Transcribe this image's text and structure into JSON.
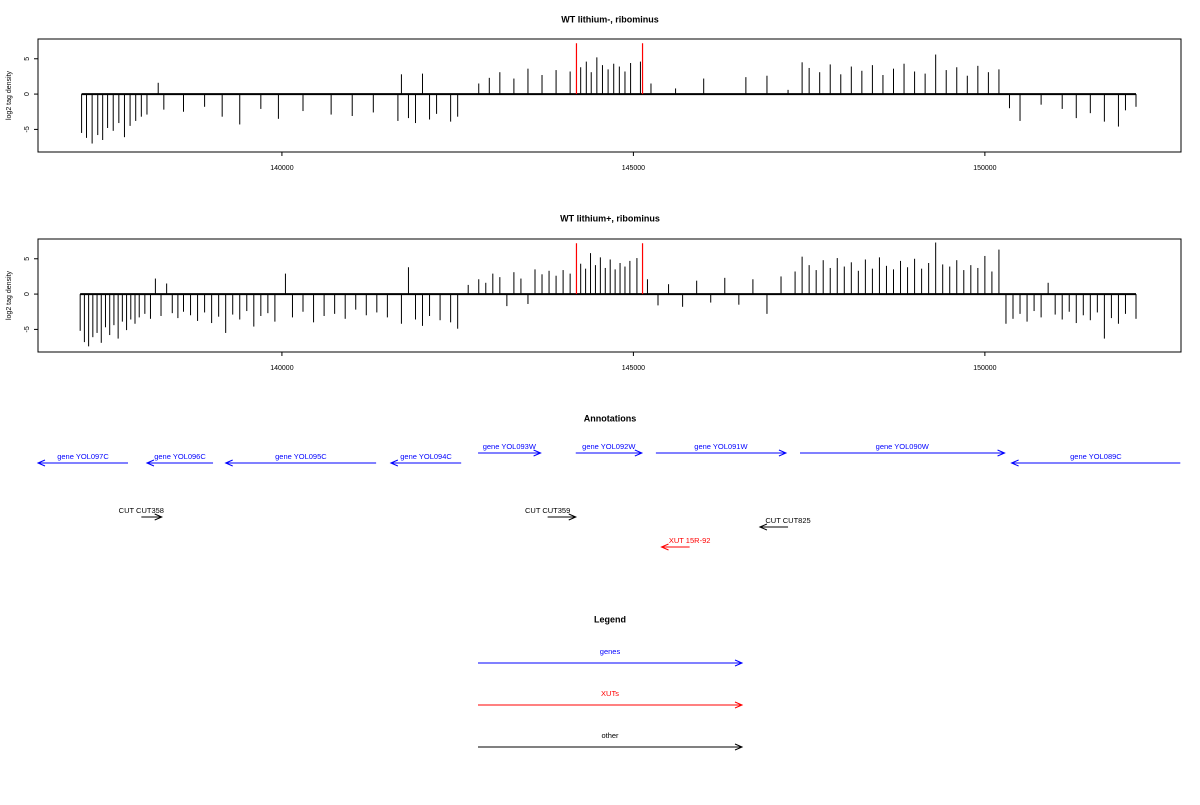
{
  "chart_data": [
    {
      "type": "bar",
      "title": "WT lithium-, ribominus",
      "y_label": "log2 tag density",
      "color": "#000000",
      "xlim": [
        136530,
        152790
      ],
      "ylim": [
        -8.2,
        7.8
      ],
      "xticks": [
        140000,
        145000,
        150000
      ],
      "yticks": [
        -5,
        0,
        5
      ],
      "x": [
        137150,
        137220,
        137300,
        137380,
        137450,
        137520,
        137600,
        137680,
        137760,
        137840,
        137920,
        138000,
        138080,
        138240,
        138320,
        138600,
        138900,
        139150,
        139400,
        139700,
        139950,
        140300,
        140700,
        141000,
        141300,
        141650,
        141700,
        141800,
        141900,
        142000,
        142100,
        142200,
        142400,
        142500,
        142800,
        142950,
        143100,
        143300,
        143500,
        143700,
        143900,
        144100,
        144250,
        144330,
        144400,
        144480,
        144560,
        144640,
        144720,
        144800,
        144880,
        144960,
        145100,
        145250,
        145600,
        146000,
        146600,
        146900,
        147200,
        147400,
        147500,
        147650,
        147800,
        147950,
        148100,
        148250,
        148400,
        148550,
        148700,
        148850,
        149000,
        149150,
        149300,
        149450,
        149600,
        149750,
        149900,
        150050,
        150200,
        150350,
        150500,
        150800,
        151100,
        151300,
        151500,
        151700,
        151900,
        152000,
        152150
      ],
      "values": [
        -5.5,
        -6.2,
        -7,
        -5.8,
        -6.5,
        -4.8,
        -5.2,
        -4.1,
        -6.1,
        -4.5,
        -3.8,
        -3.2,
        -2.9,
        1.6,
        -2.2,
        -2.5,
        -1.8,
        -3.2,
        -4.3,
        -2.1,
        -3.5,
        -2.4,
        -2.9,
        -3.1,
        -2.6,
        -3.8,
        2.8,
        -3.4,
        -4.1,
        2.9,
        -3.6,
        -2.8,
        -3.9,
        -3.2,
        1.5,
        2.3,
        3.1,
        2.2,
        3.6,
        2.7,
        3.4,
        3.2,
        3.8,
        4.6,
        3.1,
        5.2,
        4.1,
        3.5,
        4.3,
        3.9,
        3.2,
        4.4,
        4.6,
        1.5,
        0.8,
        2.2,
        2.4,
        2.6,
        0.6,
        4.5,
        3.7,
        3.1,
        4.2,
        2.8,
        3.9,
        3.3,
        4.1,
        2.7,
        3.6,
        4.3,
        3.2,
        2.9,
        5.6,
        3.4,
        3.8,
        2.6,
        4.0,
        3.1,
        3.5,
        -2.0,
        -3.8,
        -1.5,
        -2.1,
        -3.4,
        -2.7,
        -3.9,
        -4.6,
        -2.3,
        -1.8
      ],
      "highlight": {
        "color": "#ff0000",
        "x": [
          144190,
          145130
        ],
        "values": [
          7.2,
          7.2
        ]
      }
    },
    {
      "type": "bar",
      "title": "WT lithium+, ribominus",
      "y_label": "log2 tag density",
      "color": "#000000",
      "xlim": [
        136530,
        152790
      ],
      "ylim": [
        -8.2,
        7.8
      ],
      "xticks": [
        140000,
        145000,
        150000
      ],
      "yticks": [
        -5,
        0,
        5
      ],
      "x": [
        137130,
        137190,
        137250,
        137310,
        137370,
        137430,
        137490,
        137550,
        137610,
        137670,
        137730,
        137790,
        137850,
        137910,
        137970,
        138050,
        138130,
        138200,
        138280,
        138360,
        138440,
        138520,
        138600,
        138700,
        138800,
        138900,
        139000,
        139100,
        139200,
        139300,
        139400,
        139500,
        139600,
        139700,
        139800,
        139900,
        140050,
        140150,
        140300,
        140450,
        140600,
        140750,
        140900,
        141050,
        141200,
        141350,
        141500,
        141700,
        141800,
        141900,
        142000,
        142100,
        142250,
        142400,
        142500,
        142650,
        142800,
        142900,
        143000,
        143100,
        143200,
        143300,
        143400,
        143500,
        143600,
        143700,
        143800,
        143900,
        144000,
        144100,
        144250,
        144320,
        144390,
        144460,
        144530,
        144600,
        144670,
        144740,
        144810,
        144880,
        144950,
        145050,
        145200,
        145350,
        145500,
        145700,
        145900,
        146100,
        146300,
        146500,
        146700,
        146900,
        147100,
        147300,
        147400,
        147500,
        147600,
        147700,
        147800,
        147900,
        148000,
        148100,
        148200,
        148300,
        148400,
        148500,
        148600,
        148700,
        148800,
        148900,
        149000,
        149100,
        149200,
        149300,
        149400,
        149500,
        149600,
        149700,
        149800,
        149900,
        150000,
        150100,
        150200,
        150300,
        150400,
        150500,
        150600,
        150700,
        150800,
        150900,
        151000,
        151100,
        151200,
        151300,
        151400,
        151500,
        151600,
        151700,
        151800,
        151900,
        152000,
        152150
      ],
      "values": [
        -5.2,
        -6.8,
        -7.4,
        -6.1,
        -5.5,
        -6.9,
        -4.7,
        -5.8,
        -4.4,
        -6.3,
        -3.9,
        -5.1,
        -3.6,
        -4.2,
        -3.3,
        -2.8,
        -3.5,
        2.2,
        -3.1,
        1.5,
        -2.7,
        -3.4,
        -2.5,
        -3.0,
        -3.8,
        -2.6,
        -4.1,
        -3.2,
        -5.5,
        -2.9,
        -3.6,
        -2.4,
        -4.6,
        -3.1,
        -2.7,
        -3.9,
        2.9,
        -3.3,
        -2.5,
        -4.0,
        -3.1,
        -2.8,
        -3.5,
        -2.2,
        -3.0,
        -2.6,
        -3.3,
        -4.2,
        3.8,
        -3.6,
        -4.5,
        -3.1,
        -3.7,
        -4.0,
        -4.9,
        1.3,
        2.1,
        1.6,
        2.9,
        2.4,
        -1.7,
        3.1,
        2.2,
        -1.4,
        3.5,
        2.8,
        3.3,
        2.6,
        3.4,
        2.9,
        4.3,
        3.6,
        5.8,
        4.1,
        5.2,
        3.7,
        4.9,
        3.5,
        4.4,
        3.9,
        4.7,
        5.1,
        2.1,
        -1.6,
        1.4,
        -1.8,
        1.9,
        -1.2,
        2.3,
        -1.5,
        2.1,
        -2.8,
        2.5,
        3.2,
        5.3,
        4.1,
        3.4,
        4.8,
        3.7,
        5.1,
        3.9,
        4.5,
        3.3,
        4.9,
        3.6,
        5.2,
        4.0,
        3.5,
        4.7,
        3.8,
        5.0,
        3.6,
        4.4,
        7.3,
        4.2,
        3.9,
        4.8,
        3.4,
        4.1,
        3.7,
        5.4,
        3.2,
        6.3,
        -4.2,
        -3.5,
        -2.8,
        -3.9,
        -2.4,
        -3.3,
        1.6,
        -2.9,
        -3.6,
        -2.5,
        -4.1,
        -3.0,
        -3.7,
        -2.6,
        -6.3,
        -3.4,
        -4.2,
        -2.8,
        -3.5
      ],
      "highlight": {
        "color": "#ff0000",
        "x": [
          144190,
          145130
        ],
        "values": [
          7.2,
          7.2
        ]
      }
    }
  ],
  "annotations": {
    "title": "Annotations",
    "features": [
      {
        "label": "gene YOL097C",
        "kind": "gene",
        "strand": "-",
        "start": 136530,
        "end": 137810
      },
      {
        "label": "gene YOL096C",
        "kind": "gene",
        "strand": "-",
        "start": 138080,
        "end": 139020
      },
      {
        "label": "gene YOL095C",
        "kind": "gene",
        "strand": "-",
        "start": 139200,
        "end": 141340
      },
      {
        "label": "gene YOL094C",
        "kind": "gene",
        "strand": "-",
        "start": 141550,
        "end": 142550
      },
      {
        "label": "gene YOL093W",
        "kind": "gene",
        "strand": "+",
        "start": 142790,
        "end": 143680
      },
      {
        "label": "gene YOL092W",
        "kind": "gene",
        "strand": "+",
        "start": 144180,
        "end": 145120
      },
      {
        "label": "gene YOL091W",
        "kind": "gene",
        "strand": "+",
        "start": 145320,
        "end": 147170
      },
      {
        "label": "gene YOL090W",
        "kind": "gene",
        "strand": "+",
        "start": 147370,
        "end": 150280
      },
      {
        "label": "gene YOL089C",
        "kind": "gene",
        "strand": "-",
        "start": 150380,
        "end": 152780
      },
      {
        "label": "CUT CUT358",
        "kind": "other",
        "strand": "+",
        "start": 138000,
        "end": 138290
      },
      {
        "label": "CUT CUT359",
        "kind": "other",
        "strand": "+",
        "start": 143780,
        "end": 144180
      },
      {
        "label": "CUT CUT825",
        "kind": "other",
        "strand": "-",
        "start": 146800,
        "end": 147200
      },
      {
        "label": "XUT 15R-92",
        "kind": "xut",
        "strand": "-",
        "start": 145400,
        "end": 145800
      }
    ]
  },
  "legend": {
    "title": "Legend",
    "entries": [
      {
        "label": "genes",
        "kind": "gene",
        "color": "#0000ff"
      },
      {
        "label": "XUTs",
        "kind": "xut",
        "color": "#ff0000"
      },
      {
        "label": "other",
        "kind": "other",
        "color": "#000000"
      }
    ]
  }
}
